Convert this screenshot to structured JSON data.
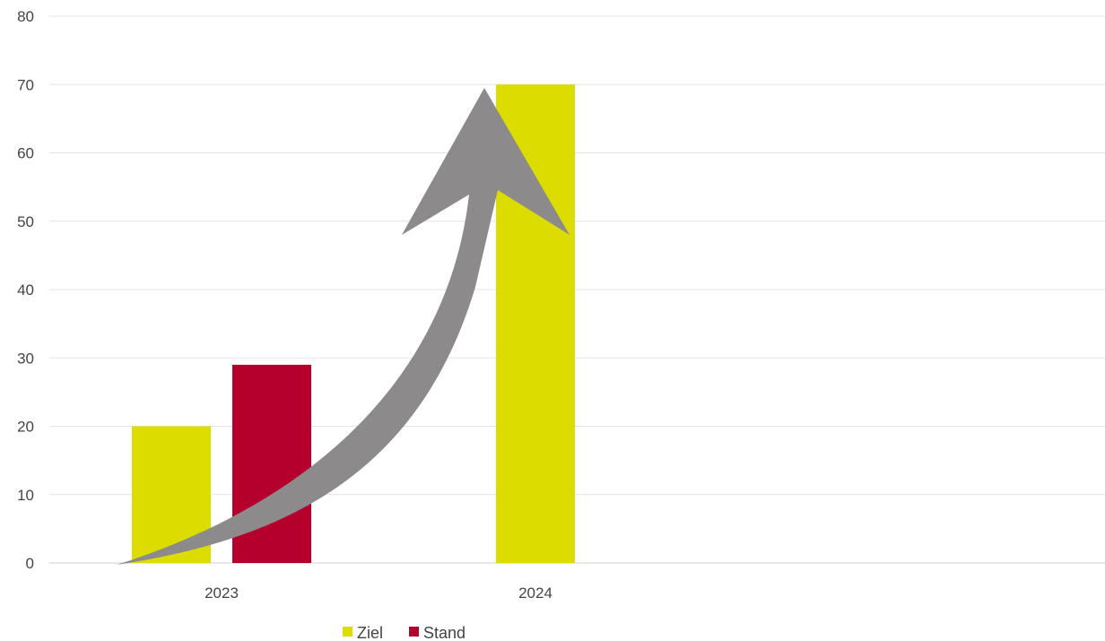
{
  "chart_data": {
    "type": "bar",
    "categories": [
      "2023",
      "2024"
    ],
    "series": [
      {
        "name": "Ziel",
        "values": [
          20,
          70
        ],
        "color": "#dcdc00"
      },
      {
        "name": "Stand",
        "values": [
          29,
          null
        ],
        "color": "#b5002e"
      }
    ],
    "ylim": [
      0,
      80
    ],
    "yticks": [
      "0",
      "10",
      "20",
      "30",
      "40",
      "50",
      "60",
      "70",
      "80"
    ],
    "grid": true,
    "legend_position": "bottom-center",
    "annotation": {
      "type": "curved-arrow",
      "color": "#8c8a8b",
      "description": "rising trend arrow from 2023 baseline to 2024 target"
    }
  }
}
